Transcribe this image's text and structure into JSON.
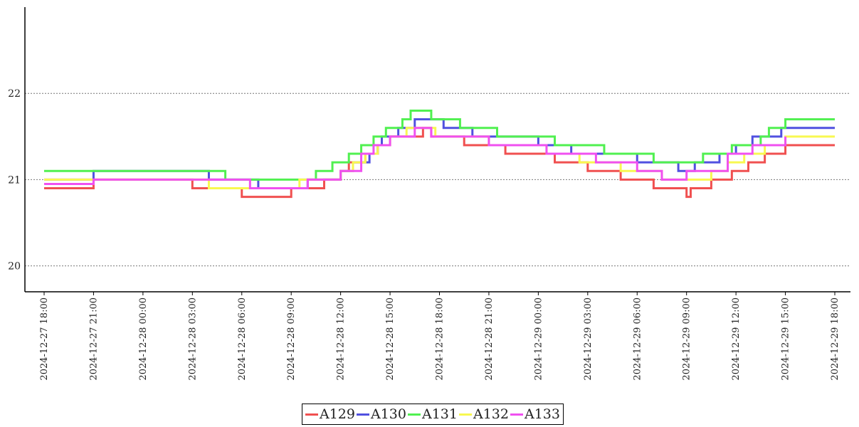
{
  "chart_data": {
    "type": "line",
    "step": true,
    "ylim": [
      19.7,
      23.0
    ],
    "y_ticks": [
      20,
      21,
      22
    ],
    "grid": "horizontal-dotted",
    "legend_position": "bottom-center",
    "x_ticks": [
      "2024-12-27 18:00",
      "2024-12-27 21:00",
      "2024-12-28 00:00",
      "2024-12-28 03:00",
      "2024-12-28 06:00",
      "2024-12-28 09:00",
      "2024-12-28 12:00",
      "2024-12-28 15:00",
      "2024-12-28 18:00",
      "2024-12-28 21:00",
      "2024-12-29 00:00",
      "2024-12-29 03:00",
      "2024-12-29 06:00",
      "2024-12-29 09:00",
      "2024-12-29 12:00",
      "2024-12-29 15:00",
      "2024-12-29 18:00"
    ],
    "series": [
      {
        "name": "A129",
        "color": "#f05050",
        "points": [
          [
            "2024-12-27 18:00",
            20.9
          ],
          [
            "2024-12-27 21:00",
            21.0
          ],
          [
            "2024-12-28 03:00",
            20.9
          ],
          [
            "2024-12-28 06:00",
            20.8
          ],
          [
            "2024-12-28 09:00",
            20.9
          ],
          [
            "2024-12-28 11:00",
            21.0
          ],
          [
            "2024-12-28 12:00",
            21.1
          ],
          [
            "2024-12-28 12:30",
            21.2
          ],
          [
            "2024-12-28 13:30",
            21.3
          ],
          [
            "2024-12-28 14:15",
            21.4
          ],
          [
            "2024-12-28 15:00",
            21.5
          ],
          [
            "2024-12-28 17:00",
            21.6
          ],
          [
            "2024-12-28 17:30",
            21.5
          ],
          [
            "2024-12-28 19:30",
            21.4
          ],
          [
            "2024-12-28 22:00",
            21.3
          ],
          [
            "2024-12-29 01:00",
            21.2
          ],
          [
            "2024-12-29 03:00",
            21.1
          ],
          [
            "2024-12-29 05:00",
            21.0
          ],
          [
            "2024-12-29 07:00",
            20.9
          ],
          [
            "2024-12-29 09:00",
            20.8
          ],
          [
            "2024-12-29 09:15",
            20.9
          ],
          [
            "2024-12-29 10:30",
            21.0
          ],
          [
            "2024-12-29 11:45",
            21.1
          ],
          [
            "2024-12-29 12:45",
            21.2
          ],
          [
            "2024-12-29 13:45",
            21.3
          ],
          [
            "2024-12-29 15:00",
            21.4
          ],
          [
            "2024-12-29 18:00",
            21.4
          ]
        ]
      },
      {
        "name": "A130",
        "color": "#5050e0",
        "points": [
          [
            "2024-12-27 18:00",
            21.0
          ],
          [
            "2024-12-27 21:00",
            21.1
          ],
          [
            "2024-12-28 03:00",
            21.1
          ],
          [
            "2024-12-28 04:00",
            21.0
          ],
          [
            "2024-12-28 07:00",
            20.9
          ],
          [
            "2024-12-28 10:00",
            21.0
          ],
          [
            "2024-12-28 12:00",
            21.1
          ],
          [
            "2024-12-28 12:45",
            21.2
          ],
          [
            "2024-12-28 13:45",
            21.3
          ],
          [
            "2024-12-28 14:15",
            21.4
          ],
          [
            "2024-12-28 14:30",
            21.5
          ],
          [
            "2024-12-28 15:30",
            21.6
          ],
          [
            "2024-12-28 16:30",
            21.7
          ],
          [
            "2024-12-28 18:15",
            21.6
          ],
          [
            "2024-12-28 20:00",
            21.5
          ],
          [
            "2024-12-29 00:00",
            21.4
          ],
          [
            "2024-12-29 02:00",
            21.3
          ],
          [
            "2024-12-29 06:00",
            21.2
          ],
          [
            "2024-12-29 08:30",
            21.1
          ],
          [
            "2024-12-29 09:30",
            21.2
          ],
          [
            "2024-12-29 11:00",
            21.3
          ],
          [
            "2024-12-29 12:00",
            21.4
          ],
          [
            "2024-12-29 13:00",
            21.5
          ],
          [
            "2024-12-29 14:45",
            21.6
          ],
          [
            "2024-12-29 18:00",
            21.6
          ]
        ]
      },
      {
        "name": "A131",
        "color": "#50f050",
        "points": [
          [
            "2024-12-27 18:00",
            21.1
          ],
          [
            "2024-12-28 05:00",
            21.0
          ],
          [
            "2024-12-28 09:00",
            21.0
          ],
          [
            "2024-12-28 10:30",
            21.1
          ],
          [
            "2024-12-28 11:30",
            21.2
          ],
          [
            "2024-12-28 12:30",
            21.3
          ],
          [
            "2024-12-28 13:15",
            21.4
          ],
          [
            "2024-12-28 14:00",
            21.5
          ],
          [
            "2024-12-28 14:45",
            21.6
          ],
          [
            "2024-12-28 15:45",
            21.7
          ],
          [
            "2024-12-28 16:15",
            21.8
          ],
          [
            "2024-12-28 17:30",
            21.7
          ],
          [
            "2024-12-28 19:15",
            21.6
          ],
          [
            "2024-12-28 21:30",
            21.5
          ],
          [
            "2024-12-29 01:00",
            21.4
          ],
          [
            "2024-12-29 04:00",
            21.3
          ],
          [
            "2024-12-29 07:00",
            21.2
          ],
          [
            "2024-12-29 10:00",
            21.3
          ],
          [
            "2024-12-29 11:45",
            21.4
          ],
          [
            "2024-12-29 13:30",
            21.5
          ],
          [
            "2024-12-29 14:00",
            21.6
          ],
          [
            "2024-12-29 15:00",
            21.7
          ],
          [
            "2024-12-29 18:00",
            21.7
          ]
        ]
      },
      {
        "name": "A132",
        "color": "#f8f850",
        "points": [
          [
            "2024-12-27 18:00",
            21.0
          ],
          [
            "2024-12-28 03:00",
            21.0
          ],
          [
            "2024-12-28 04:00",
            20.9
          ],
          [
            "2024-12-28 06:30",
            20.9
          ],
          [
            "2024-12-28 09:30",
            21.0
          ],
          [
            "2024-12-28 12:00",
            21.1
          ],
          [
            "2024-12-28 12:45",
            21.2
          ],
          [
            "2024-12-28 13:30",
            21.3
          ],
          [
            "2024-12-28 14:15",
            21.4
          ],
          [
            "2024-12-28 15:00",
            21.5
          ],
          [
            "2024-12-28 16:00",
            21.6
          ],
          [
            "2024-12-28 17:45",
            21.5
          ],
          [
            "2024-12-28 21:00",
            21.4
          ],
          [
            "2024-12-29 00:30",
            21.3
          ],
          [
            "2024-12-29 02:30",
            21.2
          ],
          [
            "2024-12-29 05:00",
            21.1
          ],
          [
            "2024-12-29 07:30",
            21.0
          ],
          [
            "2024-12-29 10:00",
            21.0
          ],
          [
            "2024-12-29 10:30",
            21.1
          ],
          [
            "2024-12-29 11:30",
            21.2
          ],
          [
            "2024-12-29 12:30",
            21.3
          ],
          [
            "2024-12-29 13:45",
            21.4
          ],
          [
            "2024-12-29 15:00",
            21.5
          ],
          [
            "2024-12-29 18:00",
            21.5
          ]
        ]
      },
      {
        "name": "A133",
        "color": "#f050f0",
        "points": [
          [
            "2024-12-27 18:00",
            20.95
          ],
          [
            "2024-12-27 21:00",
            21.0
          ],
          [
            "2024-12-28 03:00",
            21.0
          ],
          [
            "2024-12-28 06:30",
            20.9
          ],
          [
            "2024-12-28 10:00",
            21.0
          ],
          [
            "2024-12-28 12:00",
            21.1
          ],
          [
            "2024-12-28 13:15",
            21.3
          ],
          [
            "2024-12-28 14:00",
            21.4
          ],
          [
            "2024-12-28 15:00",
            21.5
          ],
          [
            "2024-12-28 16:30",
            21.6
          ],
          [
            "2024-12-28 17:30",
            21.5
          ],
          [
            "2024-12-28 21:00",
            21.4
          ],
          [
            "2024-12-29 00:30",
            21.3
          ],
          [
            "2024-12-29 03:30",
            21.2
          ],
          [
            "2024-12-29 06:00",
            21.1
          ],
          [
            "2024-12-29 07:30",
            21.0
          ],
          [
            "2024-12-29 09:00",
            21.1
          ],
          [
            "2024-12-29 11:30",
            21.3
          ],
          [
            "2024-12-29 13:00",
            21.4
          ],
          [
            "2024-12-29 15:00",
            21.5
          ]
        ]
      }
    ]
  }
}
